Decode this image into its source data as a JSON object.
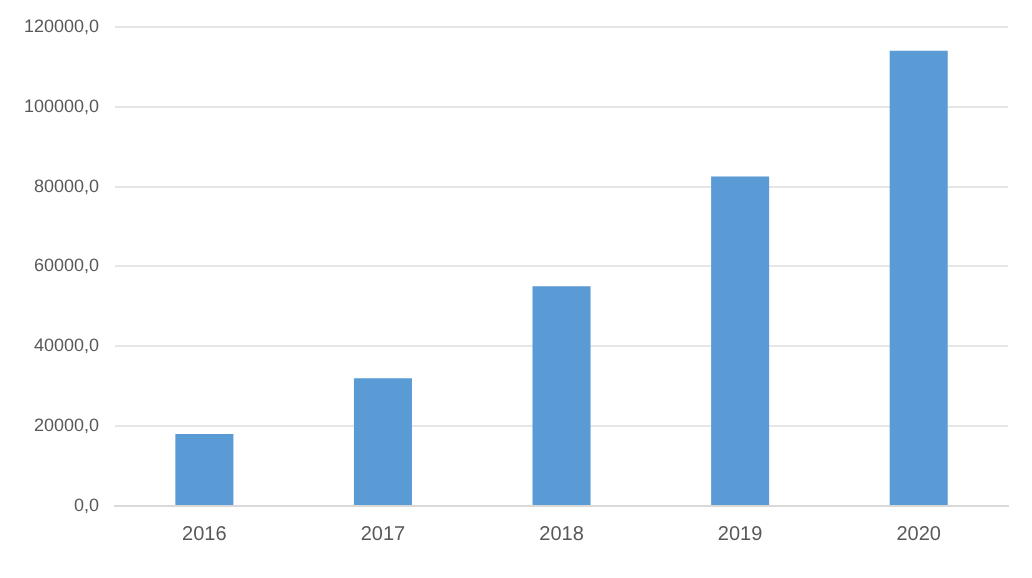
{
  "chart_data": {
    "type": "bar",
    "categories": [
      "2016",
      "2017",
      "2018",
      "2019",
      "2020"
    ],
    "values": [
      18000,
      32000,
      55000,
      82500,
      114000
    ],
    "color": "#5b9bd5",
    "ylim": [
      0,
      120000
    ],
    "yticks": [
      {
        "value": 0,
        "label": "0,0"
      },
      {
        "value": 20000,
        "label": "20000,0"
      },
      {
        "value": 40000,
        "label": "40000,0"
      },
      {
        "value": 60000,
        "label": "60000,0"
      },
      {
        "value": 80000,
        "label": "80000,0"
      },
      {
        "value": 100000,
        "label": "100000,0"
      },
      {
        "value": 120000,
        "label": "120000,0"
      }
    ],
    "grid": "y",
    "legend": false
  }
}
